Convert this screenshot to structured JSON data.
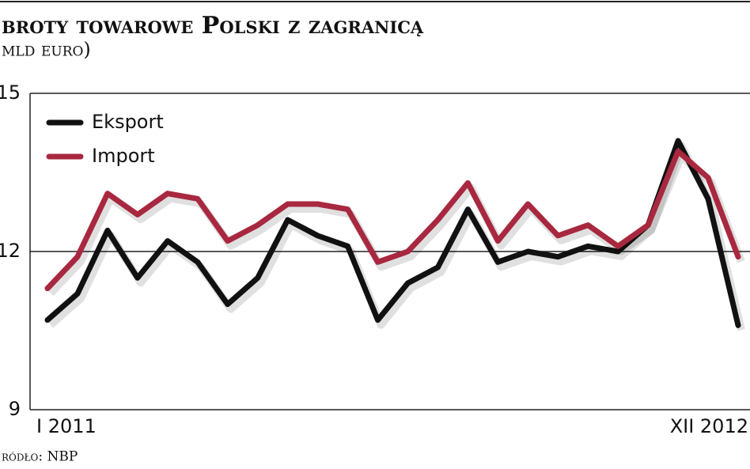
{
  "chart_data": {
    "type": "line",
    "title": "broty towarowe Polski z zagranicą",
    "subtitle": "mld euro)",
    "source": "ródło: NBP",
    "categories": [
      "I 2011",
      null,
      null,
      null,
      null,
      null,
      null,
      null,
      null,
      null,
      null,
      null,
      null,
      null,
      null,
      null,
      null,
      null,
      null,
      null,
      null,
      null,
      null,
      "XII 2012"
    ],
    "series": [
      {
        "name": "Eksport",
        "color": "#111111",
        "values": [
          10.7,
          11.2,
          12.4,
          11.5,
          12.2,
          11.8,
          11.0,
          11.5,
          12.6,
          12.3,
          12.1,
          10.7,
          11.4,
          11.7,
          12.8,
          11.8,
          12.0,
          11.9,
          12.1,
          12.0,
          12.5,
          14.1,
          13.0,
          10.6
        ]
      },
      {
        "name": "Import",
        "color": "#a8283f",
        "values": [
          11.3,
          11.9,
          13.1,
          12.7,
          13.1,
          13.0,
          12.2,
          12.5,
          12.9,
          12.9,
          12.8,
          11.8,
          12.0,
          12.6,
          13.3,
          12.2,
          12.9,
          12.3,
          12.5,
          12.1,
          12.5,
          13.9,
          13.4,
          11.9
        ]
      }
    ],
    "ylim": [
      9,
      15
    ],
    "yticks": [
      9,
      12,
      15
    ],
    "grid": true,
    "legend": "top-left"
  }
}
